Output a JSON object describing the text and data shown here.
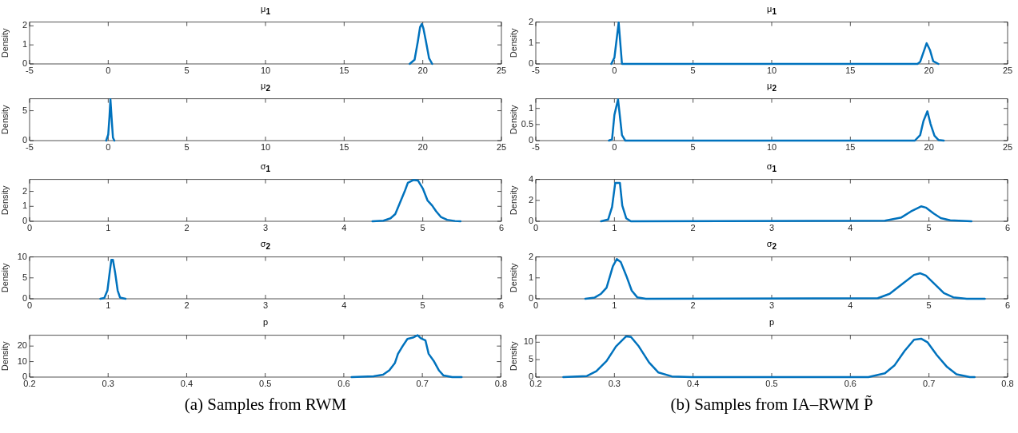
{
  "chart_data": [
    {
      "type": "line",
      "title": "μ$_{1}$",
      "ylabel": "Density",
      "xlim": [
        -5,
        25
      ],
      "xticks": [
        -5,
        0,
        5,
        10,
        15,
        20,
        25
      ],
      "ylim": [
        0,
        2.2
      ],
      "yticks": [
        0,
        1,
        2
      ],
      "marker": "none",
      "legend": false,
      "series": [
        {
          "color": "#0072bd",
          "x": [
            19.17,
            19.48,
            19.69,
            19.83,
            19.94,
            20.04,
            20.2,
            20.4,
            20.6
          ],
          "values": [
            0,
            0.22,
            1.2,
            1.94,
            2.1,
            1.87,
            1.2,
            0.3,
            0
          ]
        }
      ]
    },
    {
      "type": "line",
      "title": "μ$_{2}$",
      "ylabel": "Density",
      "xlim": [
        -5,
        25
      ],
      "xticks": [
        -5,
        0,
        5,
        10,
        15,
        20,
        25
      ],
      "ylim": [
        0,
        7
      ],
      "yticks": [
        0,
        5
      ],
      "marker": "none",
      "legend": false,
      "series": [
        {
          "color": "#0072bd",
          "x": [
            -0.13,
            0,
            0.08,
            0.14,
            0.21,
            0.3,
            0.39
          ],
          "values": [
            0,
            1,
            4,
            6.9,
            4,
            0.5,
            0
          ]
        }
      ]
    },
    {
      "type": "line",
      "title": "σ$_{1}$",
      "ylabel": "Density",
      "xlim": [
        0,
        6
      ],
      "xticks": [
        0,
        1,
        2,
        3,
        4,
        5,
        6
      ],
      "ylim": [
        0,
        2.8
      ],
      "yticks": [
        0,
        1,
        2
      ],
      "marker": "none",
      "legend": false,
      "series": [
        {
          "color": "#0072bd",
          "x": [
            4.36,
            4.5,
            4.59,
            4.65,
            4.71,
            4.77,
            4.81,
            4.88,
            4.94,
            5.0,
            5.06,
            5.12,
            5.17,
            5.23,
            5.31,
            5.41,
            5.48
          ],
          "values": [
            0,
            0.04,
            0.2,
            0.48,
            1.24,
            2,
            2.57,
            2.76,
            2.72,
            2.2,
            1.4,
            1.05,
            0.67,
            0.29,
            0.1,
            0.02,
            0
          ]
        }
      ]
    },
    {
      "type": "line",
      "title": "σ$_{2}$",
      "ylabel": "Density",
      "xlim": [
        0,
        6
      ],
      "xticks": [
        0,
        1,
        2,
        3,
        4,
        5,
        6
      ],
      "ylim": [
        0,
        10
      ],
      "yticks": [
        0,
        5,
        10
      ],
      "marker": "none",
      "legend": false,
      "series": [
        {
          "color": "#0072bd",
          "x": [
            0.9,
            0.95,
            0.99,
            1.02,
            1.04,
            1.06,
            1.09,
            1.12,
            1.15,
            1.22
          ],
          "values": [
            0,
            0.2,
            2,
            6.5,
            9.3,
            9.3,
            6,
            2,
            0.3,
            0
          ]
        }
      ]
    },
    {
      "type": "line",
      "title": "p",
      "ylabel": "Density",
      "xlim": [
        0.2,
        0.8
      ],
      "xticks": [
        0.2,
        0.3,
        0.4,
        0.5,
        0.6,
        0.7,
        0.8
      ],
      "ylim": [
        0,
        27
      ],
      "yticks": [
        0,
        10,
        20
      ],
      "marker": "none",
      "legend": false,
      "annotations": [
        "(a) Samples from RWM"
      ],
      "series": [
        {
          "color": "#0072bd",
          "x": [
            0.61,
            0.638,
            0.65,
            0.658,
            0.665,
            0.669,
            0.675,
            0.681,
            0.688,
            0.694,
            0.698,
            0.704,
            0.708,
            0.715,
            0.721,
            0.727,
            0.738,
            0.75
          ],
          "values": [
            0,
            0.5,
            1.5,
            4.4,
            9,
            15,
            20,
            24.6,
            25.5,
            27,
            25,
            23.6,
            15,
            10,
            4.4,
            1,
            0,
            0
          ]
        }
      ]
    },
    {
      "type": "line",
      "title": "μ$_{1}$",
      "ylabel": "Density",
      "xlim": [
        -5,
        25
      ],
      "xticks": [
        -5,
        0,
        5,
        10,
        15,
        20,
        25
      ],
      "ylim": [
        0,
        2
      ],
      "yticks": [
        0,
        1,
        2
      ],
      "marker": "none",
      "legend": false,
      "series": [
        {
          "color": "#0072bd",
          "x": [
            -0.2,
            0,
            0.27,
            0.48,
            19.27,
            19.44,
            19.85,
            20.06,
            20.27,
            20.6
          ],
          "values": [
            0,
            0.3,
            1.98,
            0,
            0,
            0.1,
            0.99,
            0.67,
            0.13,
            0
          ]
        }
      ]
    },
    {
      "type": "line",
      "title": "μ$_{2}$",
      "ylabel": "Density",
      "xlim": [
        -5,
        25
      ],
      "xticks": [
        -5,
        0,
        5,
        10,
        15,
        20,
        25
      ],
      "ylim": [
        0,
        1.3
      ],
      "yticks": [
        0,
        0.5,
        1
      ],
      "marker": "none",
      "legend": false,
      "series": [
        {
          "color": "#0072bd",
          "x": [
            -0.35,
            -0.15,
            0,
            0.23,
            0.48,
            0.69,
            19.1,
            19.44,
            19.65,
            19.9,
            20.1,
            20.35,
            20.6,
            20.94
          ],
          "values": [
            0,
            0.04,
            0.8,
            1.28,
            0.17,
            0,
            0,
            0.17,
            0.61,
            0.91,
            0.52,
            0.15,
            0.02,
            0
          ]
        }
      ]
    },
    {
      "type": "line",
      "title": "σ$_{1}$",
      "ylabel": "Density",
      "xlim": [
        0,
        6
      ],
      "xticks": [
        0,
        1,
        2,
        3,
        4,
        5,
        6
      ],
      "ylim": [
        0,
        4
      ],
      "yticks": [
        0,
        2,
        4
      ],
      "marker": "none",
      "legend": false,
      "series": [
        {
          "color": "#0072bd",
          "x": [
            0.83,
            0.92,
            0.97,
            1.01,
            1.07,
            1.1,
            1.15,
            1.21,
            4.44,
            4.65,
            4.77,
            4.9,
            4.96,
            5.06,
            5.15,
            5.27,
            5.54
          ],
          "values": [
            0,
            0.17,
            1.37,
            3.66,
            3.66,
            1.5,
            0.29,
            0,
            0.06,
            0.37,
            0.94,
            1.43,
            1.31,
            0.74,
            0.31,
            0.09,
            0
          ]
        }
      ]
    },
    {
      "type": "line",
      "title": "σ$_{2}$",
      "ylabel": "Density",
      "xlim": [
        0,
        6
      ],
      "xticks": [
        0,
        1,
        2,
        3,
        4,
        5,
        6
      ],
      "ylim": [
        0,
        2
      ],
      "yticks": [
        0,
        1,
        2
      ],
      "marker": "none",
      "legend": false,
      "series": [
        {
          "color": "#0072bd",
          "x": [
            0.63,
            0.75,
            0.83,
            0.9,
            0.98,
            1.03,
            1.08,
            1.15,
            1.22,
            1.29,
            1.4,
            4.35,
            4.5,
            4.65,
            4.81,
            4.89,
            4.96,
            5.06,
            5.19,
            5.31,
            5.48,
            5.71
          ],
          "values": [
            0,
            0.06,
            0.24,
            0.53,
            1.55,
            1.9,
            1.76,
            1.11,
            0.39,
            0.07,
            0,
            0.03,
            0.24,
            0.68,
            1.14,
            1.22,
            1.11,
            0.75,
            0.27,
            0.07,
            0,
            0
          ]
        }
      ]
    },
    {
      "type": "line",
      "title": "p",
      "ylabel": "Density",
      "xlim": [
        0.2,
        0.8
      ],
      "xticks": [
        0.2,
        0.3,
        0.4,
        0.5,
        0.6,
        0.7,
        0.8
      ],
      "ylim": [
        0,
        12
      ],
      "yticks": [
        0,
        5,
        10
      ],
      "marker": "none",
      "legend": false,
      "annotations": [
        "(b) Samples from IA–RWM P̃"
      ],
      "series": [
        {
          "color": "#0072bd",
          "x": [
            0.235,
            0.265,
            0.277,
            0.29,
            0.302,
            0.315,
            0.321,
            0.331,
            0.344,
            0.356,
            0.373,
            0.398,
            0.623,
            0.644,
            0.656,
            0.669,
            0.681,
            0.69,
            0.698,
            0.71,
            0.723,
            0.735,
            0.752,
            0.758
          ],
          "values": [
            0,
            0.3,
            1.7,
            4.6,
            8.8,
            11.7,
            11.5,
            8.8,
            4.2,
            1.3,
            0.2,
            0,
            0,
            1.1,
            3.3,
            7.5,
            10.7,
            11,
            10,
            6.3,
            2.9,
            0.8,
            0,
            0
          ]
        }
      ]
    }
  ]
}
